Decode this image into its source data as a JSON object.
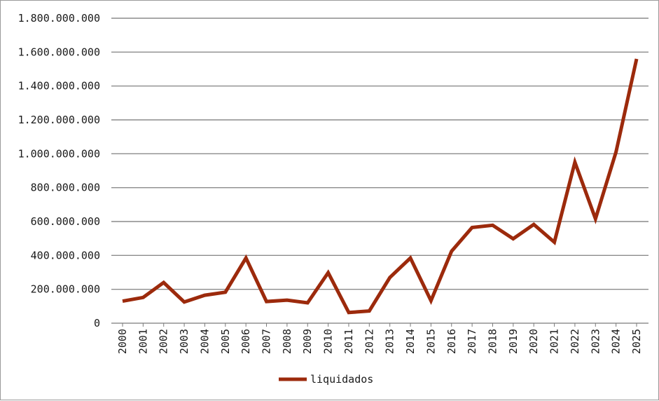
{
  "chart_data": {
    "type": "line",
    "title": "",
    "xlabel": "",
    "ylabel": "",
    "ylim": [
      0,
      1800000000
    ],
    "y_ticks": [
      "0",
      "200.000.000",
      "400.000.000",
      "600.000.000",
      "800.000.000",
      "1.000.000.000",
      "1.200.000.000",
      "1.400.000.000",
      "1.600.000.000",
      "1.800.000.000"
    ],
    "categories": [
      "2000",
      "2001",
      "2002",
      "2003",
      "2004",
      "2005",
      "2006",
      "2007",
      "2008",
      "2009",
      "2010",
      "2011",
      "2012",
      "2013",
      "2014",
      "2015",
      "2016",
      "2017",
      "2018",
      "2019",
      "2020",
      "2021",
      "2022",
      "2023",
      "2024",
      "2025"
    ],
    "series": [
      {
        "name": "liquidados",
        "color": "#9c2a0c",
        "values": [
          130000000,
          152000000,
          240000000,
          125000000,
          165000000,
          183000000,
          385000000,
          128000000,
          136000000,
          120000000,
          298000000,
          63000000,
          72000000,
          270000000,
          385000000,
          133000000,
          425000000,
          565000000,
          578000000,
          498000000,
          583000000,
          478000000,
          950000000,
          616000000,
          1010000000,
          1560000000
        ]
      }
    ],
    "grid": true,
    "legend_position": "bottom"
  }
}
